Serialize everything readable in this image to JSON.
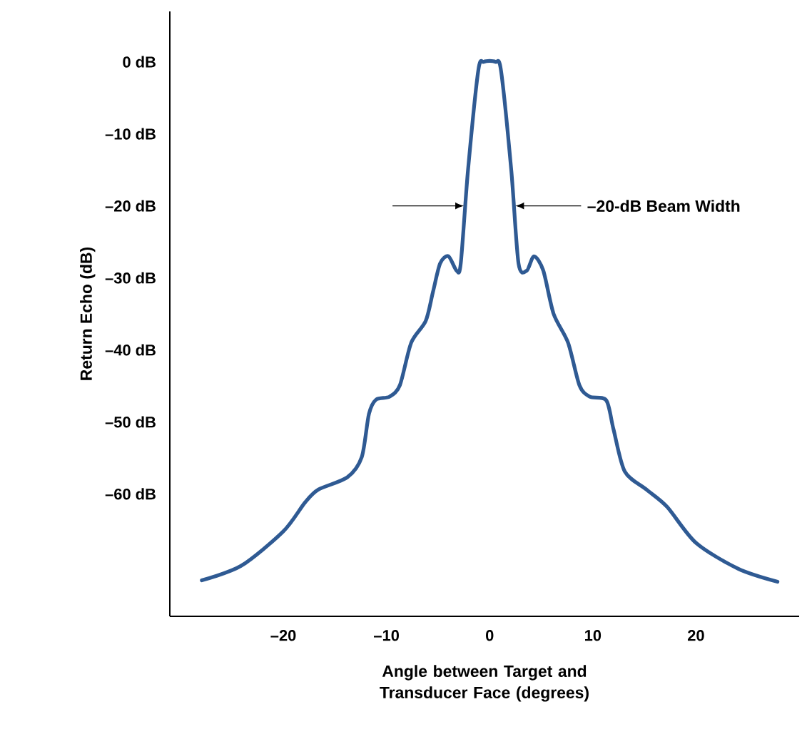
{
  "chart_data": {
    "type": "line",
    "xlabel": "Angle between Target and Transducer Face (degrees)",
    "ylabel": "Return Echo (dB)",
    "xlim": [
      -31,
      30
    ],
    "ylim": [
      -77,
      7
    ],
    "xticks": [
      {
        "value": -20,
        "label": "–20"
      },
      {
        "value": -10,
        "label": "–10"
      },
      0,
      10,
      20
    ],
    "yticks": [
      {
        "value": 0,
        "label": "0 dB"
      },
      {
        "value": -10,
        "label": "–10 dB"
      },
      {
        "value": -20,
        "label": "–20 dB"
      },
      {
        "value": -30,
        "label": "–30 dB"
      },
      {
        "value": -40,
        "label": "–40 dB"
      },
      {
        "value": -50,
        "label": "–50 dB"
      },
      {
        "value": -60,
        "label": "–60 dB"
      }
    ],
    "grid": false,
    "marker": "none",
    "line_style": "solid",
    "annotations": [
      {
        "text": "–20-dB Beam Width",
        "x": 2.5,
        "y": -20
      }
    ],
    "series": [
      {
        "color": "#2f5a93",
        "x": [
          -27.9,
          -24.1,
          -20,
          -17.9,
          -16.6,
          -13.8,
          -12.4,
          -11.7,
          -11,
          -9.7,
          -8.7,
          -7.6,
          -6.2,
          -5.5,
          -4.8,
          -4,
          -3.2,
          -2.8,
          -2.1,
          -1.1,
          -0.55,
          0.55,
          1.1,
          2.1,
          2.8,
          3.6,
          4.3,
          5.2,
          6.2,
          7.6,
          8.7,
          9.7,
          11.3,
          12,
          13.1,
          15.2,
          17.2,
          20,
          24.1,
          27.9
        ],
        "values": [
          -72,
          -70,
          -65.2,
          -61.2,
          -59.4,
          -57.7,
          -54.9,
          -48.9,
          -46.9,
          -46.5,
          -44.9,
          -39,
          -36,
          -32,
          -28,
          -27,
          -29,
          -28,
          -15.1,
          -1.2,
          0,
          0,
          -1.2,
          -15.1,
          -28,
          -29,
          -27,
          -29,
          -35,
          -39,
          -44.9,
          -46.5,
          -47,
          -51,
          -56.9,
          -59.4,
          -61.8,
          -66.8,
          -70.4,
          -72.2
        ]
      }
    ]
  }
}
